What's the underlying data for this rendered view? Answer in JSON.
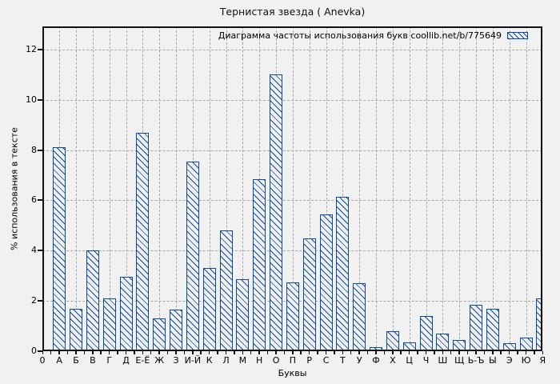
{
  "window": {
    "title": "Тернистая звезда ( Anevka)"
  },
  "chart_data": {
    "type": "bar",
    "title": "Тернистая звезда ( Anevka)",
    "legend": {
      "label": "Диаграмма частоты использования букв coollib.net/b/775649",
      "swatch": "blue-hatched-bar-sample",
      "position": "top-right-inside"
    },
    "xlabel": "Буквы",
    "ylabel": "% использования в тексте",
    "x_origin_label": "0",
    "yticks": [
      0,
      2,
      4,
      6,
      8,
      10,
      12
    ],
    "ylim": [
      0,
      12.92
    ],
    "grid": true,
    "categories": [
      "А",
      "Б",
      "В",
      "Г",
      "Д",
      "Е-Ё",
      "Ж",
      "З",
      "И-Й",
      "К",
      "Л",
      "М",
      "Н",
      "О",
      "П",
      "Р",
      "С",
      "Т",
      "У",
      "Ф",
      "Х",
      "Ц",
      "Ч",
      "Ш",
      "Щ",
      "Ь-Ъ",
      "Ы",
      "Э",
      "Ю",
      "Я"
    ],
    "values": [
      8.1,
      1.7,
      4.0,
      2.1,
      2.95,
      8.7,
      1.3,
      1.65,
      7.55,
      3.3,
      4.8,
      2.85,
      6.85,
      11.0,
      2.75,
      4.5,
      5.45,
      6.15,
      2.7,
      0.15,
      0.8,
      0.35,
      1.4,
      0.7,
      0.46,
      1.85,
      1.7,
      0.32,
      0.55,
      2.1
    ],
    "colors": {
      "bar": "#0b4a9c",
      "grid": "#a8a8a8",
      "background": "#f1f1f1",
      "axis": "#000000"
    }
  }
}
